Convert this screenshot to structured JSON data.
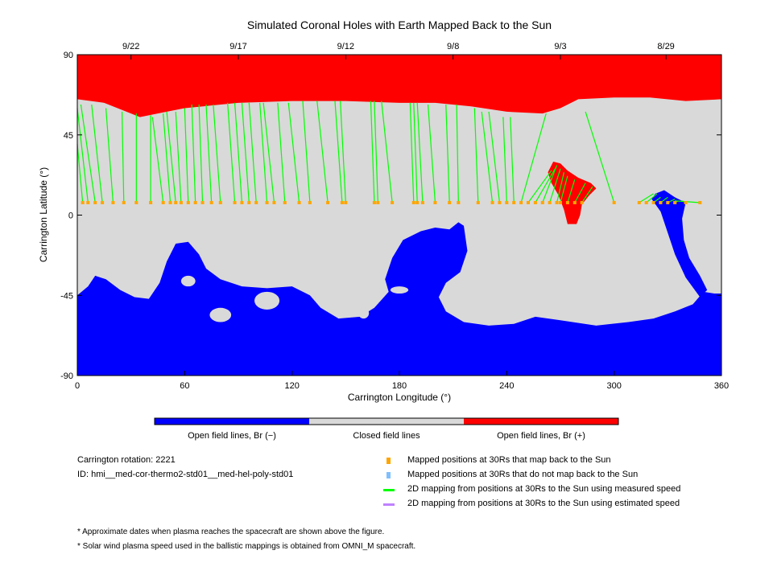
{
  "chart_data": {
    "type": "heatmap",
    "title": "Simulated Coronal Holes with Earth Mapped Back to the Sun",
    "xlabel": "Carrington Longitude (°)",
    "ylabel": "Carrington Latitude (°)",
    "xlim": [
      0,
      360
    ],
    "ylim": [
      -90,
      90
    ],
    "xticks": [
      0,
      60,
      120,
      180,
      240,
      300,
      360
    ],
    "yticks": [
      90,
      45,
      0,
      -45,
      -90
    ],
    "top_ticks": [
      {
        "label": "9/22",
        "lon": 30
      },
      {
        "label": "9/17",
        "lon": 90
      },
      {
        "label": "9/12",
        "lon": 150
      },
      {
        "label": "9/8",
        "lon": 210
      },
      {
        "label": "9/3",
        "lon": 270
      },
      {
        "label": "8/29",
        "lon": 329
      }
    ],
    "colors": {
      "negative": "#0000ff",
      "closed": "#d9d9d9",
      "positive": "#ff0000",
      "mapped": "#ffa500",
      "not_mapped": "#7fbfff",
      "measured": "#00ff00",
      "estimated": "#bf80ff"
    },
    "colorbar": [
      "Open field lines, Br (−)",
      "Closed field lines",
      "Open field lines, Br (+)"
    ],
    "regions": {
      "north_polar_positive_boundary": [
        [
          0,
          65
        ],
        [
          15,
          63
        ],
        [
          30,
          57
        ],
        [
          35,
          55
        ],
        [
          45,
          57
        ],
        [
          60,
          60
        ],
        [
          90,
          63
        ],
        [
          120,
          64
        ],
        [
          150,
          64
        ],
        [
          180,
          63
        ],
        [
          200,
          63
        ],
        [
          220,
          61
        ],
        [
          240,
          58
        ],
        [
          260,
          57
        ],
        [
          270,
          60
        ],
        [
          280,
          65
        ],
        [
          300,
          66
        ],
        [
          320,
          66
        ],
        [
          340,
          64
        ],
        [
          360,
          65
        ]
      ],
      "low_lat_positive": [
        [
          263,
          24
        ],
        [
          266,
          30
        ],
        [
          270,
          29
        ],
        [
          274,
          25
        ],
        [
          280,
          21
        ],
        [
          287,
          18
        ],
        [
          290,
          15
        ],
        [
          286,
          11
        ],
        [
          282,
          6
        ],
        [
          281,
          0
        ],
        [
          279,
          -5
        ],
        [
          274,
          -5
        ],
        [
          272,
          3
        ],
        [
          269,
          11
        ],
        [
          265,
          18
        ]
      ],
      "south_polar_negative_boundary": [
        [
          0,
          -45
        ],
        [
          6,
          -40
        ],
        [
          10,
          -34
        ],
        [
          16,
          -36
        ],
        [
          24,
          -42
        ],
        [
          32,
          -46
        ],
        [
          40,
          -47
        ],
        [
          46,
          -38
        ],
        [
          50,
          -26
        ],
        [
          55,
          -16
        ],
        [
          62,
          -15
        ],
        [
          68,
          -22
        ],
        [
          72,
          -30
        ],
        [
          80,
          -36
        ],
        [
          92,
          -40
        ],
        [
          106,
          -41
        ],
        [
          120,
          -40
        ],
        [
          130,
          -45
        ],
        [
          136,
          -52
        ],
        [
          146,
          -58
        ],
        [
          158,
          -57
        ],
        [
          166,
          -52
        ],
        [
          174,
          -43
        ],
        [
          172,
          -36
        ],
        [
          176,
          -24
        ],
        [
          182,
          -14
        ],
        [
          192,
          -9
        ],
        [
          200,
          -7
        ],
        [
          208,
          -8
        ],
        [
          213,
          -4
        ],
        [
          216,
          -6
        ],
        [
          218,
          -20
        ],
        [
          214,
          -32
        ],
        [
          206,
          -38
        ],
        [
          202,
          -46
        ],
        [
          206,
          -54
        ],
        [
          216,
          -60
        ],
        [
          230,
          -62
        ],
        [
          244,
          -61
        ],
        [
          256,
          -57
        ],
        [
          270,
          -59
        ],
        [
          290,
          -62
        ],
        [
          308,
          -60
        ],
        [
          322,
          -58
        ],
        [
          334,
          -54
        ],
        [
          344,
          -50
        ],
        [
          350,
          -43
        ],
        [
          356,
          -44
        ],
        [
          360,
          -44
        ]
      ],
      "low_lat_negative_finger": [
        [
          323,
          12
        ],
        [
          328,
          14
        ],
        [
          334,
          10
        ],
        [
          340,
          7
        ],
        [
          338,
          -2
        ],
        [
          339,
          -14
        ],
        [
          342,
          -24
        ],
        [
          348,
          -34
        ],
        [
          352,
          -42
        ],
        [
          348,
          -46
        ],
        [
          340,
          -35
        ],
        [
          334,
          -22
        ],
        [
          330,
          -10
        ],
        [
          326,
          2
        ],
        [
          321,
          9
        ]
      ],
      "closed_islands": [
        [
          62,
          -37,
          4,
          3
        ],
        [
          80,
          -56,
          6,
          4
        ],
        [
          106,
          -48,
          7,
          5
        ],
        [
          160,
          -55,
          3,
          3
        ],
        [
          180,
          -42,
          5,
          2
        ]
      ]
    },
    "mapping_lat": 7,
    "mappings": [
      [
        3,
        0,
        40
      ],
      [
        6,
        0,
        60
      ],
      [
        10,
        2,
        62
      ],
      [
        14,
        8,
        62
      ],
      [
        20,
        16,
        60
      ],
      [
        26,
        25,
        58
      ],
      [
        33,
        33,
        57
      ],
      [
        41,
        41,
        56
      ],
      [
        48,
        42,
        55
      ],
      [
        52,
        48,
        57
      ],
      [
        55,
        50,
        58
      ],
      [
        58,
        55,
        58
      ],
      [
        62,
        60,
        60
      ],
      [
        66,
        64,
        62
      ],
      [
        70,
        68,
        62
      ],
      [
        75,
        72,
        62
      ],
      [
        80,
        76,
        62
      ],
      [
        88,
        84,
        63
      ],
      [
        92,
        88,
        63
      ],
      [
        96,
        92,
        63
      ],
      [
        100,
        96,
        63
      ],
      [
        106,
        102,
        63
      ],
      [
        110,
        104,
        63
      ],
      [
        116,
        112,
        63
      ],
      [
        124,
        118,
        63
      ],
      [
        130,
        126,
        64
      ],
      [
        140,
        134,
        64
      ],
      [
        148,
        144,
        64
      ],
      [
        150,
        147,
        64
      ],
      [
        166,
        164,
        64
      ],
      [
        168,
        166,
        64
      ],
      [
        176,
        170,
        64
      ],
      [
        188,
        186,
        63
      ],
      [
        190,
        188,
        63
      ],
      [
        193,
        190,
        63
      ],
      [
        200,
        196,
        62
      ],
      [
        208,
        206,
        62
      ],
      [
        213,
        212,
        62
      ],
      [
        224,
        222,
        60
      ],
      [
        232,
        226,
        58
      ],
      [
        236,
        230,
        58
      ],
      [
        240,
        238,
        55
      ],
      [
        244,
        242,
        55
      ],
      [
        248,
        262,
        57
      ],
      [
        252,
        265,
        25
      ],
      [
        256,
        267,
        26
      ],
      [
        260,
        268,
        28
      ],
      [
        264,
        270,
        26
      ],
      [
        268,
        272,
        24
      ],
      [
        270,
        274,
        22
      ],
      [
        274,
        278,
        20
      ],
      [
        278,
        284,
        18
      ],
      [
        282,
        288,
        16
      ],
      [
        300,
        284,
        58
      ],
      [
        314,
        322,
        12
      ],
      [
        318,
        324,
        12
      ],
      [
        322,
        326,
        10
      ],
      [
        326,
        330,
        10
      ],
      [
        330,
        334,
        9
      ],
      [
        334,
        336,
        8
      ],
      [
        340,
        338,
        8
      ],
      [
        348,
        334,
        8
      ]
    ],
    "info": {
      "rotation": "Carrington rotation: 2221",
      "id": "ID: hmi__med-cor-thermo2-std01__med-hel-poly-std01"
    },
    "legend": [
      "Mapped positions at 30Rs that map back to the Sun",
      "Mapped positions at 30Rs that do not map back to the Sun",
      "2D mapping from positions at 30Rs to the Sun using measured speed",
      "2D mapping from positions at 30Rs to the Sun using estimated speed"
    ],
    "notes": [
      "* Approximate dates when plasma reaches the spacecraft are shown above the figure.",
      "* Solar wind plasma speed used in the ballistic mappings is obtained from OMNI_M spacecraft."
    ]
  }
}
